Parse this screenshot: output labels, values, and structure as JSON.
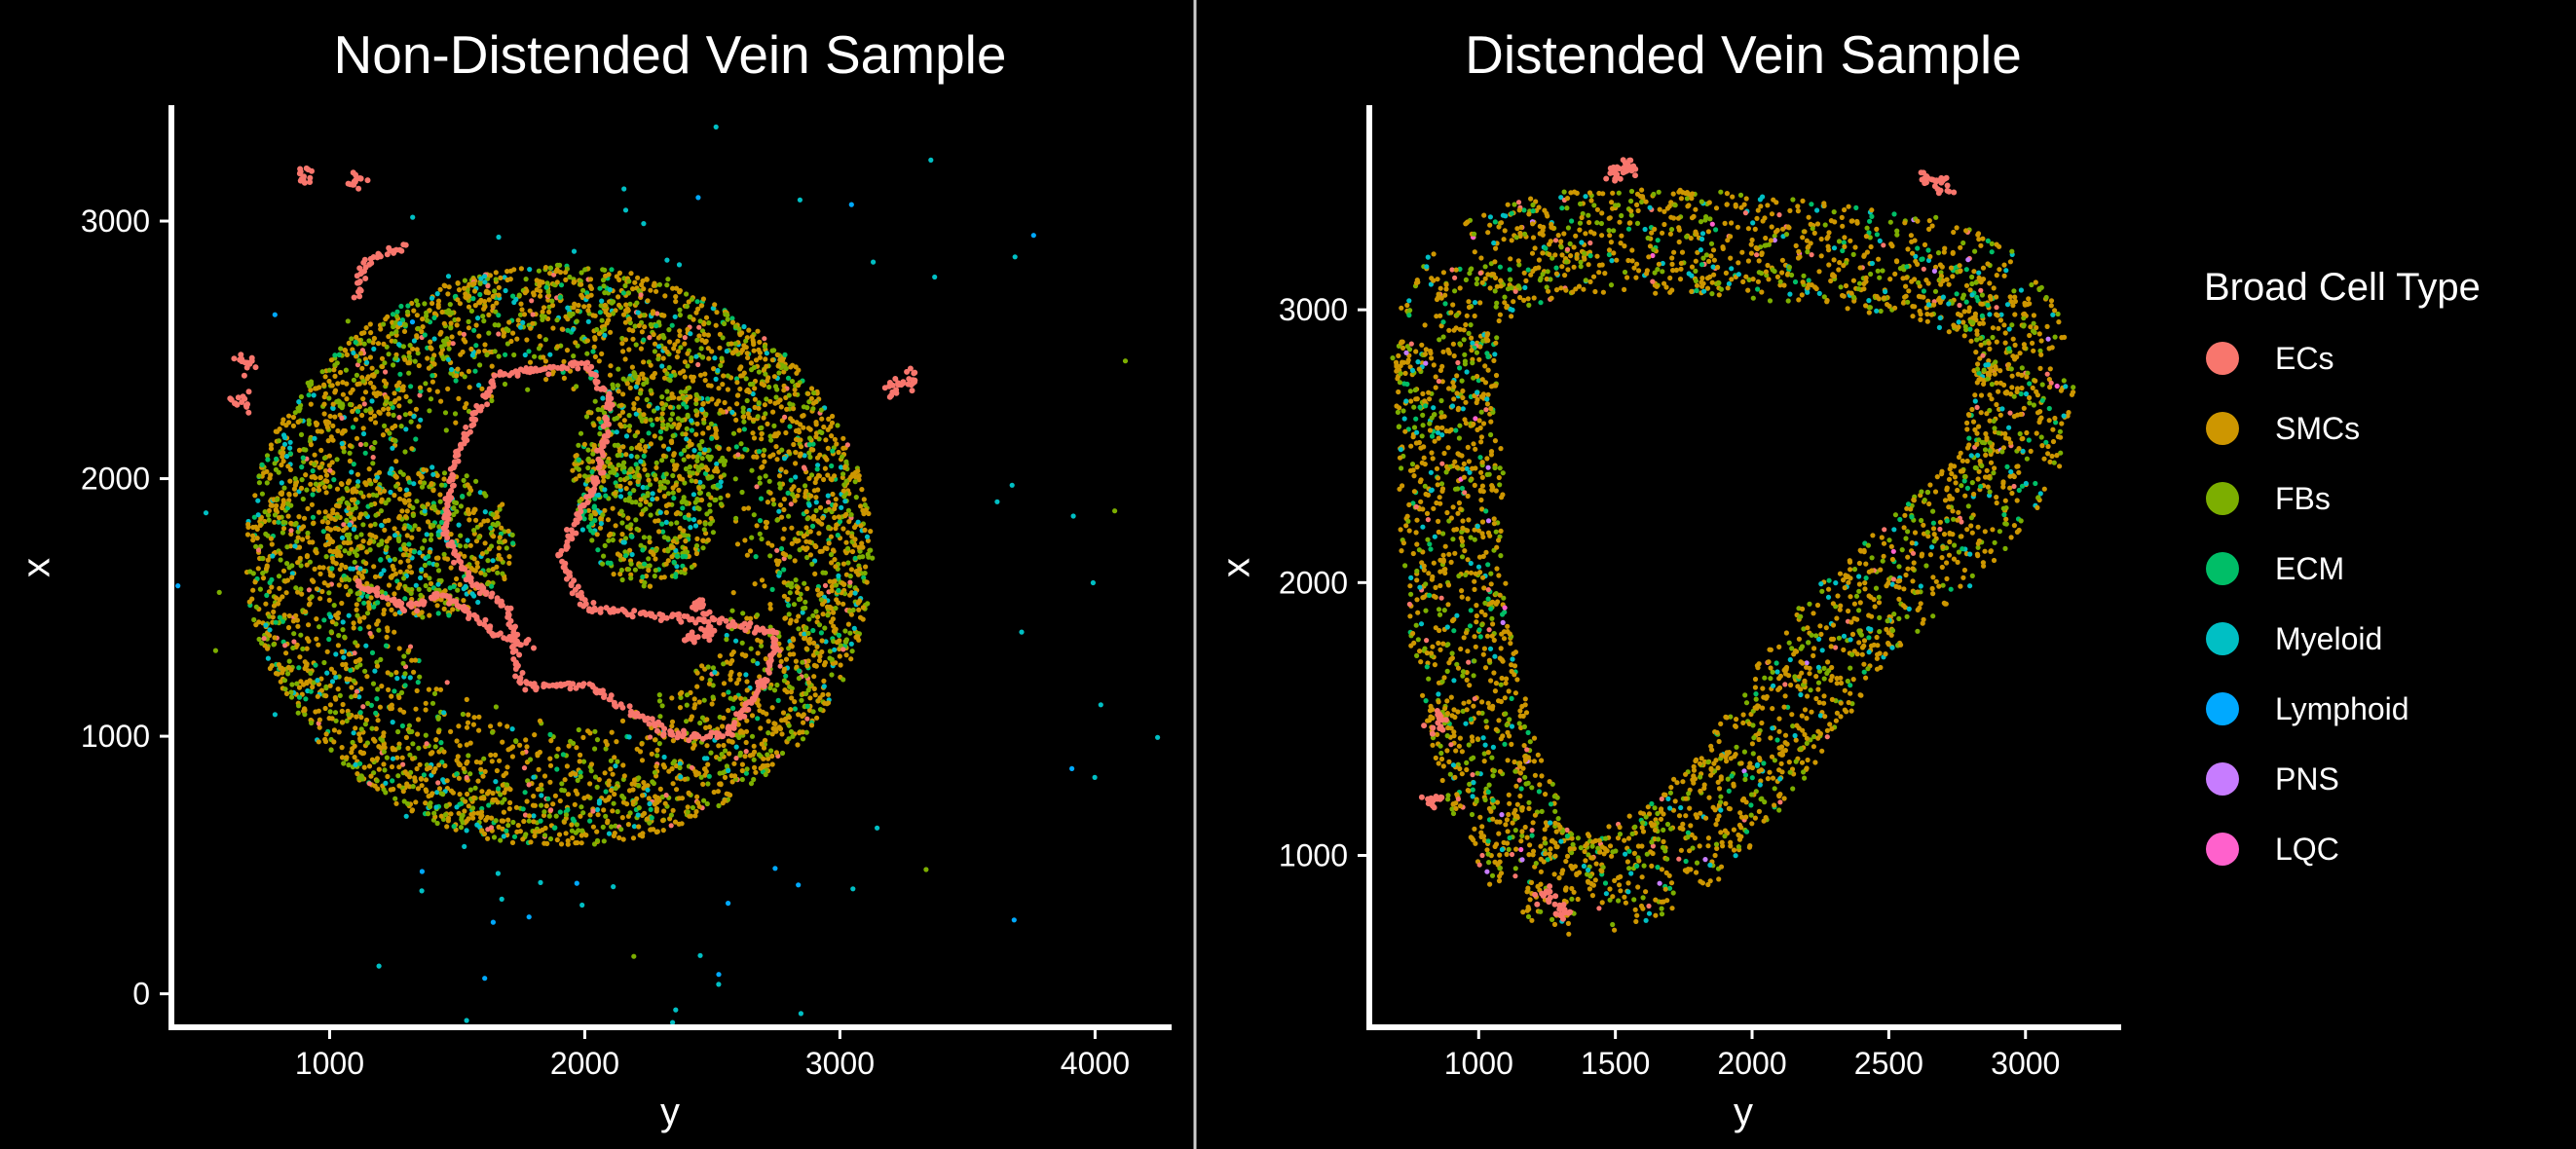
{
  "chart_data": [
    {
      "type": "scatter",
      "title": "Non-Distended Vein Sample",
      "xlabel": "y",
      "ylabel": "x",
      "xlim": [
        380,
        4300
      ],
      "ylim": [
        -130,
        3450
      ],
      "xticks": [
        1000,
        2000,
        3000,
        4000
      ],
      "yticks": [
        0,
        1000,
        2000,
        3000
      ],
      "grid": false,
      "description_of_points": "Thousands of single-cell points forming a ring-shaped vein cross-section; centre approx (1900, 1700), outer radius ~1200, lumen outlined by ECs; scattered Myeloid/Lymphoid points outside",
      "clusters": [
        {
          "shape": "ring",
          "cx": 1900,
          "cy": 1700,
          "rx": 1230,
          "ry": 1130,
          "inner": 0.55,
          "n": 3800,
          "mix": {
            "SMCs": 0.58,
            "FBs": 0.27,
            "ECM": 0.07,
            "Myeloid": 0.05,
            "ECs": 0.03
          }
        },
        {
          "shape": "fill",
          "cx": 2250,
          "cy": 2000,
          "rx": 300,
          "ry": 420,
          "n": 700,
          "mix": {
            "FBs": 0.45,
            "SMCs": 0.35,
            "ECM": 0.12,
            "Myeloid": 0.08
          }
        },
        {
          "shape": "fill",
          "cx": 1350,
          "cy": 1750,
          "rx": 380,
          "ry": 300,
          "n": 550,
          "mix": {
            "SMCs": 0.45,
            "FBs": 0.35,
            "ECM": 0.1,
            "Myeloid": 0.1
          }
        },
        {
          "shape": "scatter",
          "cx": 2400,
          "cy": 1600,
          "rx": 1800,
          "ry": 1700,
          "n": 90,
          "mix": {
            "Myeloid": 0.55,
            "Lymphoid": 0.25,
            "FBs": 0.2
          }
        }
      ],
      "ec_lines": [
        [
          [
            1650,
            2400
          ],
          [
            2000,
            2450
          ],
          [
            2100,
            2300
          ],
          [
            2050,
            2000
          ],
          [
            1900,
            1700
          ],
          [
            2000,
            1500
          ],
          [
            2150,
            1480
          ],
          [
            2500,
            1450
          ],
          [
            2750,
            1400
          ],
          [
            2700,
            1200
          ],
          [
            2550,
            1000
          ],
          [
            2350,
            1000
          ],
          [
            2000,
            1200
          ],
          [
            1750,
            1200
          ],
          [
            1700,
            1500
          ],
          [
            1550,
            1600
          ],
          [
            1450,
            1800
          ],
          [
            1500,
            2100
          ],
          [
            1650,
            2400
          ]
        ],
        [
          [
            1100,
            1600
          ],
          [
            1300,
            1500
          ],
          [
            1450,
            1550
          ],
          [
            1650,
            1400
          ],
          [
            1800,
            1350
          ]
        ],
        [
          [
            1300,
            2900
          ],
          [
            1150,
            2850
          ],
          [
            1100,
            2700
          ]
        ]
      ],
      "ec_spots": [
        [
          2450,
          1500
        ],
        [
          2480,
          1400
        ],
        [
          2420,
          1380
        ],
        [
          3220,
          2350
        ],
        [
          3280,
          2380
        ],
        [
          680,
          2450
        ],
        [
          650,
          2300
        ],
        [
          900,
          3180
        ],
        [
          1100,
          3160
        ]
      ]
    },
    {
      "type": "scatter",
      "title": "Distended Vein Sample",
      "xlabel": "y",
      "ylabel": "x",
      "xlim": [
        600,
        3350
      ],
      "ylim": [
        370,
        3750
      ],
      "xticks": [
        1000,
        1500,
        2000,
        2500,
        3000
      ],
      "yticks": [
        1000,
        2000,
        3000
      ],
      "grid": false,
      "description_of_points": "Single-cell points forming a thick triangular/heart-shaped vein wall with a large empty lumen; wall mostly SMCs with FBs, ECM and Myeloid interspersed",
      "wall_path": [
        [
          900,
          2500
        ],
        [
          870,
          2900
        ],
        [
          1000,
          3150
        ],
        [
          1300,
          3250
        ],
        [
          1800,
          3250
        ],
        [
          2300,
          3200
        ],
        [
          2650,
          3150
        ],
        [
          2900,
          3050
        ],
        [
          3000,
          2800
        ],
        [
          2950,
          2450
        ],
        [
          2700,
          2150
        ],
        [
          2350,
          1850
        ],
        [
          2150,
          1550
        ],
        [
          1950,
          1250
        ],
        [
          1700,
          1000
        ],
        [
          1400,
          880
        ],
        [
          1200,
          950
        ],
        [
          1050,
          1300
        ],
        [
          950,
          1700
        ],
        [
          900,
          2100
        ],
        [
          900,
          2500
        ]
      ],
      "wall_width": 190,
      "wall_n": 3400,
      "mix": {
        "SMCs": 0.62,
        "FBs": 0.22,
        "ECM": 0.06,
        "Myeloid": 0.06,
        "ECs": 0.03,
        "PNS": 0.005,
        "LQC": 0.005
      },
      "ec_spots": [
        [
          830,
          1200
        ],
        [
          850,
          1500
        ],
        [
          2700,
          3450
        ],
        [
          2650,
          3480
        ],
        [
          1500,
          3500
        ],
        [
          1550,
          3520
        ],
        [
          1250,
          850
        ],
        [
          1300,
          800
        ]
      ]
    }
  ],
  "legend": {
    "title": "Broad Cell Type",
    "placement": "right",
    "items": [
      {
        "label": "ECs",
        "color": "#F8766D"
      },
      {
        "label": "SMCs",
        "color": "#CD9600"
      },
      {
        "label": "FBs",
        "color": "#7CAE00"
      },
      {
        "label": "ECM",
        "color": "#00BE67"
      },
      {
        "label": "Myeloid",
        "color": "#00BFC4"
      },
      {
        "label": "Lymphoid",
        "color": "#00A9FF"
      },
      {
        "label": "PNS",
        "color": "#C77CFF"
      },
      {
        "label": "LQC",
        "color": "#FF61CC"
      }
    ]
  },
  "colors": {
    "background": "#000000",
    "foreground": "#ffffff",
    "divider": "#cccccc"
  }
}
